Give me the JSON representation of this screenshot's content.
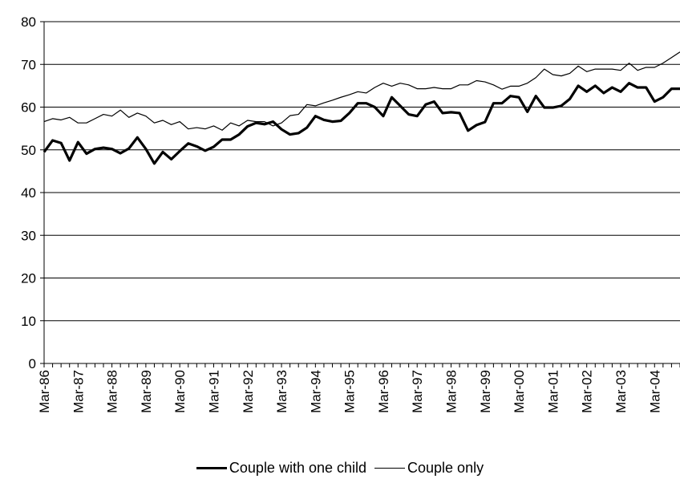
{
  "chart_data": {
    "type": "line",
    "title": "",
    "xlabel": "",
    "ylabel": "",
    "ylim": [
      0,
      80
    ],
    "yticks": [
      "0",
      "10",
      "20",
      "30",
      "40",
      "50",
      "60",
      "70",
      "80"
    ],
    "xticks": [
      "Mar-86",
      "Mar-87",
      "Mar-88",
      "Mar-89",
      "Mar-90",
      "Mar-91",
      "Mar-92",
      "Mar-93",
      "Mar-94",
      "Mar-95",
      "Mar-96",
      "Mar-97",
      "Mar-98",
      "Mar-99",
      "Mar-00",
      "Mar-01",
      "Mar-02",
      "Mar-03",
      "Mar-04"
    ],
    "x_start": "Mar-86",
    "x_step": "quarter",
    "grid": "horizontal",
    "legend_position": "bottom",
    "series": [
      {
        "name": "Couple with one child",
        "values": [
          49.5,
          52.2,
          51.6,
          47.5,
          51.8,
          49.1,
          50.2,
          50.5,
          50.2,
          49.2,
          50.3,
          52.9,
          50.2,
          46.8,
          49.5,
          47.8,
          49.7,
          51.5,
          50.8,
          49.8,
          50.7,
          52.4,
          52.4,
          53.6,
          55.5,
          56.3,
          56.0,
          56.6,
          54.8,
          53.6,
          53.9,
          55.2,
          57.9,
          57.0,
          56.6,
          56.8,
          58.6,
          60.9,
          60.9,
          60.0,
          57.9,
          62.3,
          60.3,
          58.3,
          57.9,
          60.6,
          61.3,
          58.6,
          58.8,
          58.6,
          54.5,
          55.8,
          56.5,
          60.9,
          60.9,
          62.6,
          62.3,
          58.9,
          62.6,
          59.9,
          59.9,
          60.3,
          61.9,
          65.0,
          63.6,
          65.0,
          63.3,
          64.6,
          63.6,
          65.6,
          64.6,
          64.6,
          61.3,
          62.3,
          64.3,
          64.3
        ]
      },
      {
        "name": "Couple only",
        "values": [
          56.6,
          57.3,
          57.0,
          57.6,
          56.3,
          56.3,
          57.3,
          58.3,
          57.9,
          59.3,
          57.6,
          58.6,
          57.9,
          56.3,
          56.9,
          55.9,
          56.6,
          54.9,
          55.2,
          54.9,
          55.6,
          54.6,
          56.3,
          55.6,
          56.9,
          56.6,
          56.6,
          55.6,
          56.3,
          58.0,
          58.3,
          60.6,
          60.3,
          61.0,
          61.6,
          62.3,
          62.9,
          63.6,
          63.3,
          64.6,
          65.6,
          64.9,
          65.6,
          65.2,
          64.3,
          64.3,
          64.6,
          64.3,
          64.3,
          65.2,
          65.2,
          66.2,
          65.9,
          65.2,
          64.2,
          64.9,
          64.9,
          65.6,
          66.9,
          68.9,
          67.6,
          67.3,
          67.9,
          69.6,
          68.3,
          68.9,
          68.9,
          68.9,
          68.6,
          70.3,
          68.6,
          69.3,
          69.3,
          70.3,
          71.6,
          72.9
        ]
      }
    ]
  }
}
